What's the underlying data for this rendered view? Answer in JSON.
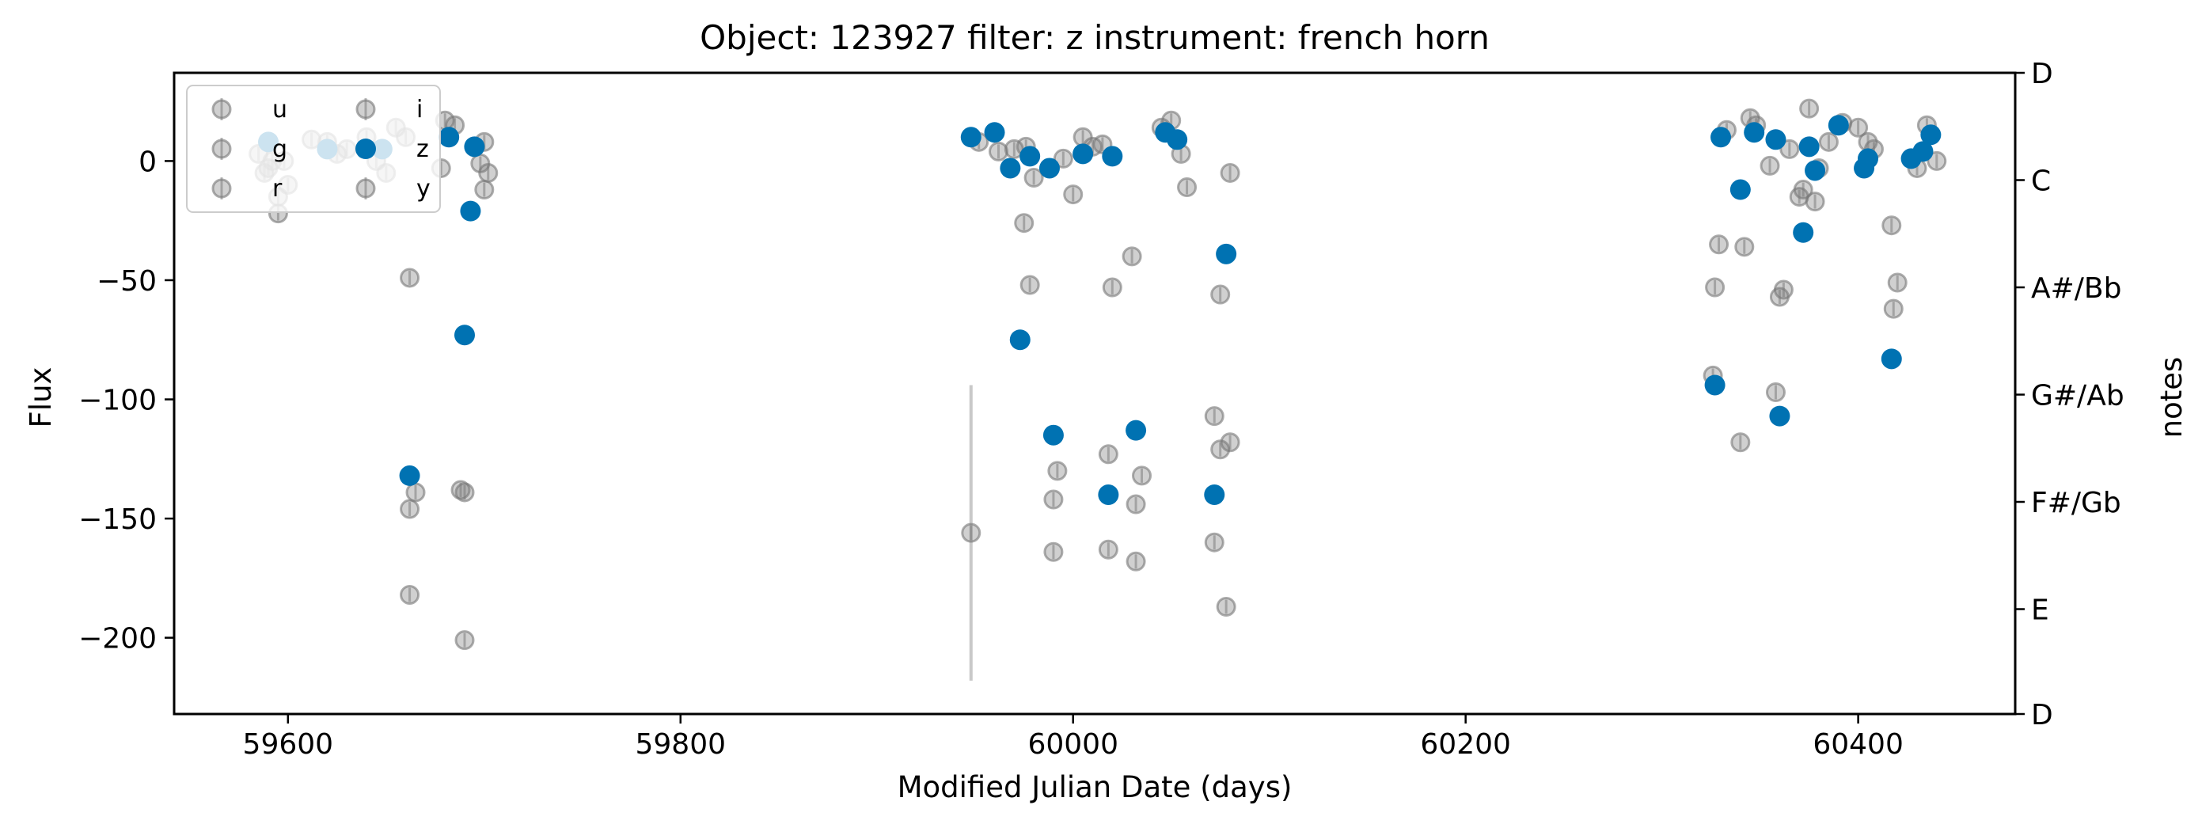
{
  "chart_data": {
    "type": "scatter",
    "title": "Object: 123927 filter: z instrument: french horn",
    "xlabel": "Modified Julian Date (days)",
    "ylabel": "Flux",
    "y2label": "notes",
    "xlim": [
      59542,
      60480
    ],
    "ylim": [
      -232,
      37
    ],
    "x_ticks": [
      59600,
      59800,
      60000,
      60200,
      60400
    ],
    "x_tick_labels": [
      "59600",
      "59800",
      "60000",
      "60200",
      "60400"
    ],
    "y_ticks": [
      0,
      -50,
      -100,
      -150,
      -200
    ],
    "y_tick_labels": [
      "0",
      "−50",
      "−100",
      "−150",
      "−200"
    ],
    "y2_ticks": [
      {
        "label": "D",
        "y": 37
      },
      {
        "label": "C",
        "y": -8
      },
      {
        "label": "A#/Bb",
        "y": -53
      },
      {
        "label": "G#/Ab",
        "y": -98
      },
      {
        "label": "F#/Gb",
        "y": -143
      },
      {
        "label": "E",
        "y": -188
      },
      {
        "label": "D",
        "y": -232
      }
    ],
    "legend": {
      "placement": "top-left",
      "entries": [
        {
          "label": "u",
          "style": "other"
        },
        {
          "label": "g",
          "style": "other"
        },
        {
          "label": "r",
          "style": "other"
        },
        {
          "label": "i",
          "style": "other"
        },
        {
          "label": "z",
          "style": "highlight"
        },
        {
          "label": "y",
          "style": "other"
        }
      ]
    },
    "colors": {
      "highlight": "#0072b2",
      "other": "#777777"
    },
    "series": [
      {
        "name": "z",
        "style": "highlight",
        "points": [
          [
            59590,
            8
          ],
          [
            59620,
            5
          ],
          [
            59648,
            5
          ],
          [
            59662,
            -132
          ],
          [
            59682,
            10
          ],
          [
            59690,
            -73
          ],
          [
            59693,
            -21
          ],
          [
            59695,
            6
          ],
          [
            59948,
            10
          ],
          [
            59960,
            12
          ],
          [
            59968,
            -3
          ],
          [
            59973,
            -75
          ],
          [
            59978,
            2
          ],
          [
            59988,
            -3
          ],
          [
            59990,
            -115
          ],
          [
            60005,
            3
          ],
          [
            60018,
            -140
          ],
          [
            60020,
            2
          ],
          [
            60032,
            -113
          ],
          [
            60047,
            12
          ],
          [
            60053,
            9
          ],
          [
            60072,
            -140
          ],
          [
            60078,
            -39
          ],
          [
            60327,
            -94
          ],
          [
            60330,
            10
          ],
          [
            60340,
            -12
          ],
          [
            60347,
            12
          ],
          [
            60358,
            9
          ],
          [
            60360,
            -107
          ],
          [
            60372,
            -30
          ],
          [
            60375,
            6
          ],
          [
            60378,
            -4
          ],
          [
            60390,
            15
          ],
          [
            60403,
            -3
          ],
          [
            60405,
            1
          ],
          [
            60417,
            -83
          ],
          [
            60427,
            1
          ],
          [
            60433,
            4
          ],
          [
            60437,
            11
          ]
        ]
      },
      {
        "name": "u",
        "style": "other",
        "points": [
          [
            59585,
            3
          ],
          [
            59595,
            -22
          ],
          [
            59662,
            -182
          ],
          [
            59690,
            -201
          ]
        ]
      },
      {
        "name": "g",
        "style": "other",
        "points": [
          [
            59588,
            -5
          ],
          [
            59595,
            -15
          ],
          [
            59620,
            8
          ],
          [
            59640,
            10
          ],
          [
            59655,
            14
          ],
          [
            59662,
            -49
          ],
          [
            59680,
            17
          ],
          [
            59700,
            8
          ],
          [
            59978,
            -52
          ],
          [
            59990,
            -164
          ],
          [
            60018,
            -163
          ],
          [
            60032,
            -168
          ],
          [
            60072,
            -160
          ],
          [
            60078,
            -187
          ],
          [
            60327,
            -53
          ],
          [
            60340,
            -118
          ],
          [
            60358,
            -97
          ],
          [
            60375,
            22
          ]
        ]
      },
      {
        "name": "r",
        "style": "other",
        "points": [
          [
            59590,
            -3
          ],
          [
            59600,
            -10
          ],
          [
            59625,
            3
          ],
          [
            59645,
            0
          ],
          [
            59662,
            -146
          ],
          [
            59678,
            -3
          ],
          [
            59690,
            -139
          ],
          [
            59702,
            -5
          ],
          [
            59948,
            -156
          ],
          [
            59975,
            -26
          ],
          [
            59990,
            -142
          ],
          [
            60005,
            10
          ],
          [
            60018,
            -123
          ],
          [
            60032,
            -144
          ],
          [
            60050,
            17
          ],
          [
            60075,
            -121
          ],
          [
            60329,
            -35
          ],
          [
            60342,
            -36
          ],
          [
            60360,
            -57
          ],
          [
            60370,
            -15
          ],
          [
            60405,
            8
          ],
          [
            60420,
            -51
          ],
          [
            60435,
            15
          ]
        ]
      },
      {
        "name": "i",
        "style": "other",
        "points": [
          [
            59592,
            0
          ],
          [
            59612,
            9
          ],
          [
            59650,
            -5
          ],
          [
            59665,
            -139
          ],
          [
            59688,
            -138
          ],
          [
            59700,
            -12
          ],
          [
            59952,
            8
          ],
          [
            59970,
            5
          ],
          [
            59980,
            -7
          ],
          [
            59992,
            -130
          ],
          [
            60010,
            6
          ],
          [
            60020,
            -53
          ],
          [
            60035,
            -132
          ],
          [
            60055,
            3
          ],
          [
            60072,
            -107
          ],
          [
            60080,
            -118
          ],
          [
            60326,
            -90
          ],
          [
            60345,
            18
          ],
          [
            60362,
            -54
          ],
          [
            60378,
            -17
          ],
          [
            60400,
            14
          ],
          [
            60418,
            -62
          ],
          [
            60430,
            -3
          ]
        ]
      },
      {
        "name": "y",
        "style": "other",
        "points": [
          [
            59598,
            0
          ],
          [
            59630,
            5
          ],
          [
            59660,
            10
          ],
          [
            59685,
            15
          ],
          [
            59698,
            -1
          ],
          [
            59962,
            4
          ],
          [
            59976,
            6
          ],
          [
            59995,
            1
          ],
          [
            60000,
            -14
          ],
          [
            60015,
            7
          ],
          [
            60030,
            -40
          ],
          [
            60045,
            14
          ],
          [
            60058,
            -11
          ],
          [
            60075,
            -56
          ],
          [
            60080,
            -5
          ],
          [
            60333,
            13
          ],
          [
            60348,
            15
          ],
          [
            60355,
            -2
          ],
          [
            60365,
            5
          ],
          [
            60372,
            -12
          ],
          [
            60380,
            -3
          ],
          [
            60385,
            8
          ],
          [
            60392,
            16
          ],
          [
            60408,
            5
          ],
          [
            60417,
            -27
          ],
          [
            60440,
            0
          ]
        ]
      }
    ]
  }
}
